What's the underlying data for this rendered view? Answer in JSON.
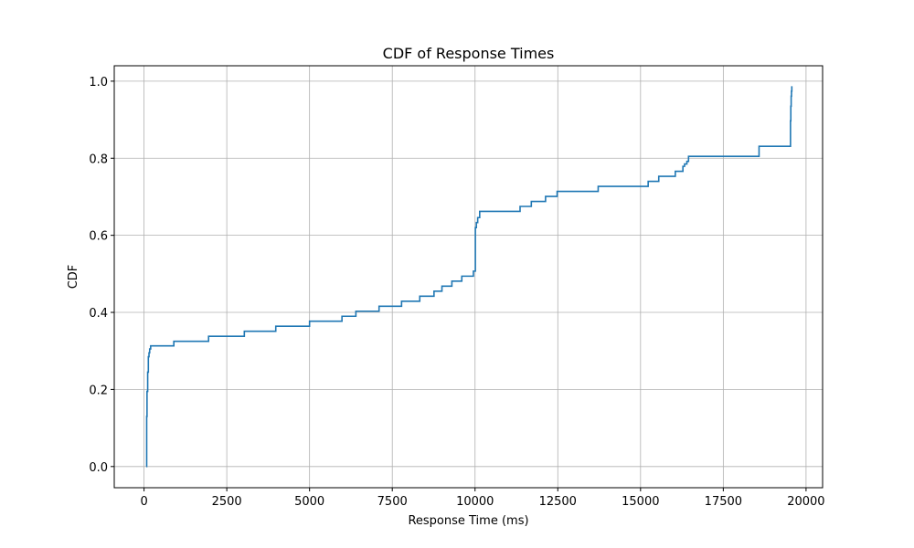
{
  "chart_data": {
    "type": "line",
    "title": "CDF of Response Times",
    "xlabel": "Response Time (ms)",
    "ylabel": "CDF",
    "xlim": [
      -900,
      20500
    ],
    "ylim": [
      -0.055,
      1.04
    ],
    "xticks": [
      0,
      2500,
      5000,
      7500,
      10000,
      12500,
      15000,
      17500,
      20000
    ],
    "yticks": [
      0.0,
      0.2,
      0.4,
      0.6,
      0.8,
      1.0
    ],
    "xtick_labels": [
      "0",
      "2500",
      "5000",
      "7500",
      "10000",
      "12500",
      "15000",
      "17500",
      "20000"
    ],
    "ytick_labels": [
      "0.0",
      "0.2",
      "0.4",
      "0.6",
      "0.8",
      "1.0"
    ],
    "grid": true,
    "series": [
      {
        "color": "#1f77b4",
        "drawstyle": "steps-post",
        "x": [
          70,
          80,
          90,
          110,
          130,
          150,
          170,
          200,
          230,
          900,
          1950,
          3030,
          3980,
          5000,
          5980,
          6400,
          7100,
          7780,
          8330,
          8760,
          9000,
          9300,
          9600,
          9950,
          10010,
          10040,
          10080,
          10140,
          11360,
          11700,
          12130,
          12480,
          13720,
          15230,
          15550,
          16050,
          16280,
          16330,
          16400,
          16450,
          16500,
          18580,
          19530,
          19540,
          19550,
          19560,
          19570
        ],
        "y": [
          0.0,
          0.13,
          0.195,
          0.245,
          0.285,
          0.295,
          0.305,
          0.313,
          0.313,
          0.325,
          0.338,
          0.351,
          0.364,
          0.377,
          0.39,
          0.403,
          0.416,
          0.429,
          0.442,
          0.455,
          0.468,
          0.481,
          0.494,
          0.507,
          0.62,
          0.633,
          0.646,
          0.662,
          0.675,
          0.688,
          0.701,
          0.714,
          0.727,
          0.74,
          0.753,
          0.766,
          0.779,
          0.785,
          0.792,
          0.805,
          0.805,
          0.831,
          0.897,
          0.935,
          0.961,
          0.974,
          0.987
        ]
      }
    ]
  }
}
